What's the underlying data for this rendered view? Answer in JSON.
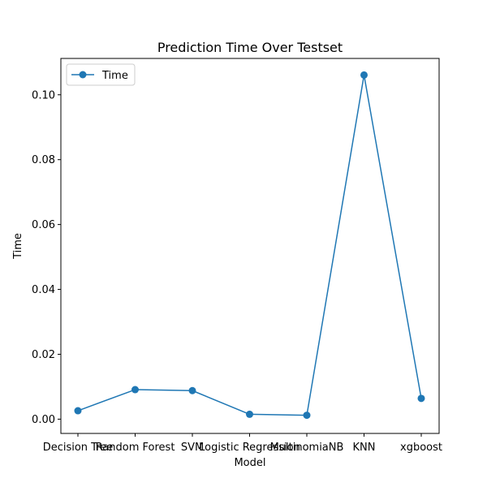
{
  "chart_data": {
    "type": "line",
    "title": "Prediction Time Over Testset",
    "xlabel": "Model",
    "ylabel": "Time",
    "categories": [
      "Decision Tree",
      "Random Forest",
      "SVM",
      "Logistic Regression",
      "MultinomiaNB",
      "KNN",
      "xgboost"
    ],
    "series": [
      {
        "name": "Time",
        "color": "#1f77b4",
        "marker": "circle",
        "values": [
          0.0026,
          0.0091,
          0.0088,
          0.0015,
          0.0012,
          0.1061,
          0.0064
        ]
      }
    ],
    "ylim": [
      -0.0044,
      0.1112
    ],
    "yticks": [
      0.0,
      0.02,
      0.04,
      0.06,
      0.08,
      0.1
    ],
    "ytick_labels": [
      "0.00",
      "0.02",
      "0.04",
      "0.06",
      "0.08",
      "0.10"
    ],
    "grid": false,
    "legend_position": "upper-left"
  }
}
